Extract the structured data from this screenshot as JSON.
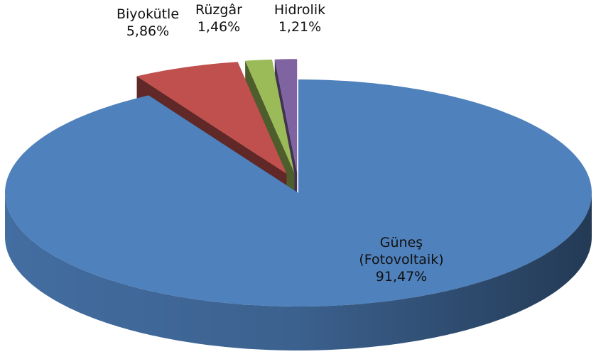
{
  "chart_data": {
    "type": "pie3d",
    "categories": [
      "Güneş (Fotovoltaik)",
      "Biyokütle",
      "Rüzgâr",
      "Hidrolik"
    ],
    "values": [
      91.47,
      5.86,
      1.46,
      1.21
    ],
    "value_labels": [
      "91,47%",
      "5,86%",
      "1,46%",
      "1,21%"
    ],
    "colors": [
      "#4f81bd",
      "#c0504d",
      "#9bbb59",
      "#8064a2"
    ]
  }
}
